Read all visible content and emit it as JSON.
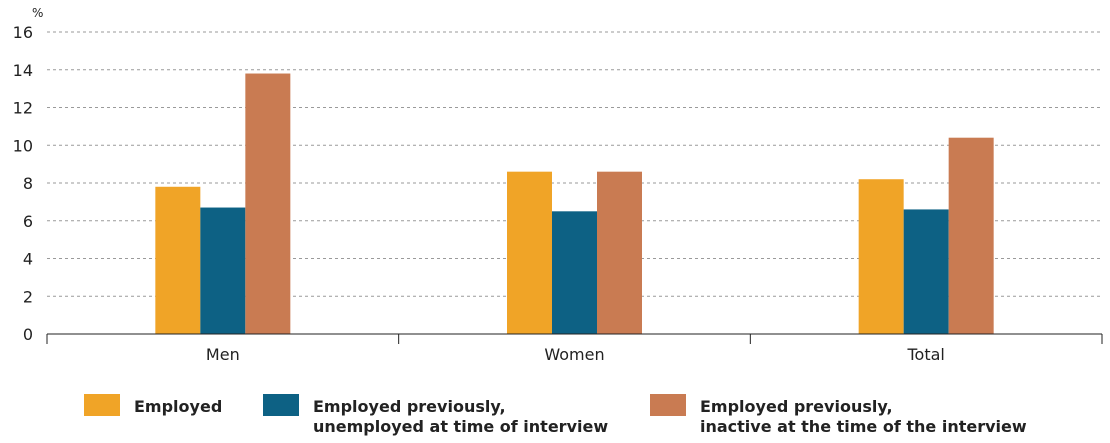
{
  "chart_data": {
    "type": "bar",
    "unit_label": "%",
    "categories": [
      "Men",
      "Women",
      "Total"
    ],
    "series": [
      {
        "name": "Employed",
        "color": "#f0a427",
        "values": [
          7.8,
          8.6,
          8.2
        ]
      },
      {
        "name": "Employed previously, unemployed at time of interview",
        "color": "#0d6184",
        "values": [
          6.7,
          6.5,
          6.6
        ]
      },
      {
        "name": "Employed previously, inactive at the time of the interview",
        "color": "#c97b52",
        "values": [
          13.8,
          8.6,
          10.4
        ]
      }
    ],
    "ylim": [
      0,
      16
    ],
    "yticks": [
      0,
      2,
      4,
      6,
      8,
      10,
      12,
      14,
      16
    ],
    "grid": true,
    "legend_position": "bottom"
  },
  "legend": [
    {
      "lines": [
        "Employed"
      ],
      "color": "#f0a427"
    },
    {
      "lines": [
        "Employed previously,",
        "unemployed at time of interview"
      ],
      "color": "#0d6184"
    },
    {
      "lines": [
        "Employed previously,",
        "inactive at the time of the interview"
      ],
      "color": "#c97b52"
    }
  ]
}
